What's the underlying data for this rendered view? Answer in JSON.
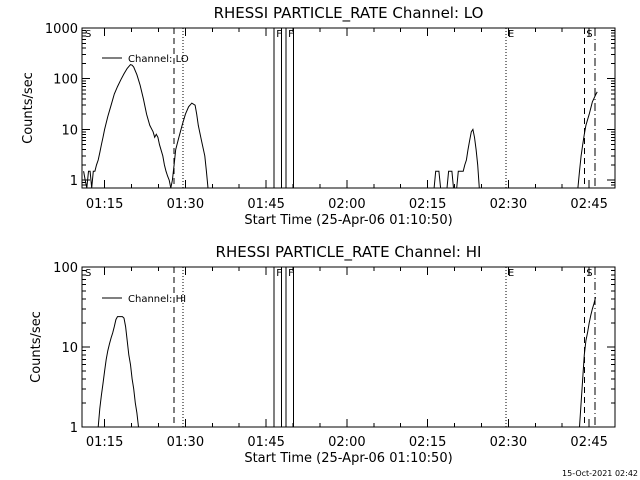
{
  "footer": {
    "timestamp": "15-Oct-2021 02:42"
  },
  "chart_data": [
    {
      "type": "line",
      "title": "RHESSI PARTICLE_RATE Channel: LO",
      "xlabel": "Start Time (25-Apr-06 01:10:50)",
      "ylabel": "Counts/sec",
      "yscale": "log",
      "xlim": [
        1.18,
        2.83
      ],
      "ylim": [
        0.7,
        1000
      ],
      "xticks": [
        1.25,
        1.5,
        1.75,
        2.0,
        2.25,
        2.5,
        2.75
      ],
      "xtick_labels": [
        "01:15",
        "01:30",
        "01:45",
        "02:00",
        "02:15",
        "02:30",
        "02:45"
      ],
      "yticks": [
        1,
        10,
        100,
        1000
      ],
      "ytick_labels": [
        "1",
        "10",
        "100",
        "1000"
      ],
      "legend": {
        "placement": "top-left",
        "entries": [
          "Channel: LO"
        ]
      },
      "markers": [
        {
          "label": "S",
          "x": 1.183,
          "style": "none"
        },
        {
          "label": "",
          "x": 1.465,
          "style": "dashed"
        },
        {
          "label": "",
          "x": 1.493,
          "style": "dotted"
        },
        {
          "label": "F",
          "x": 1.775,
          "style": "solid"
        },
        {
          "label": "",
          "x": 1.798,
          "style": "solid"
        },
        {
          "label": "F",
          "x": 1.812,
          "style": "solid"
        },
        {
          "label": "",
          "x": 1.835,
          "style": "solid"
        },
        {
          "label": "E",
          "x": 2.492,
          "style": "dotted"
        },
        {
          "label": "S",
          "x": 2.735,
          "style": "dashed"
        },
        {
          "label": "",
          "x": 2.768,
          "style": "dashdot"
        }
      ],
      "series": [
        {
          "segments": [
            [
              [
                1.185,
                1.5
              ],
              [
                1.19,
                1
              ],
              [
                1.195,
                0.7
              ],
              [
                1.2,
                1.5
              ],
              [
                1.205,
                1.5
              ],
              [
                1.21,
                0.7
              ],
              [
                1.215,
                1.5
              ],
              [
                1.22,
                1.5
              ],
              [
                1.225,
                2
              ],
              [
                1.23,
                2.5
              ],
              [
                1.235,
                3.5
              ],
              [
                1.24,
                5
              ],
              [
                1.245,
                7
              ],
              [
                1.25,
                10
              ],
              [
                1.26,
                18
              ],
              [
                1.27,
                30
              ],
              [
                1.28,
                50
              ],
              [
                1.29,
                70
              ],
              [
                1.3,
                95
              ],
              [
                1.31,
                125
              ],
              [
                1.32,
                160
              ],
              [
                1.33,
                190
              ],
              [
                1.335,
                185
              ],
              [
                1.34,
                170
              ],
              [
                1.35,
                120
              ],
              [
                1.36,
                75
              ],
              [
                1.37,
                40
              ],
              [
                1.38,
                20
              ],
              [
                1.39,
                12
              ],
              [
                1.4,
                9
              ],
              [
                1.405,
                7
              ],
              [
                1.41,
                8
              ],
              [
                1.415,
                7
              ],
              [
                1.42,
                5
              ],
              [
                1.43,
                3
              ],
              [
                1.435,
                2
              ],
              [
                1.44,
                1.5
              ],
              [
                1.445,
                1.2
              ],
              [
                1.45,
                1
              ],
              [
                1.455,
                0.7
              ]
            ],
            [
              [
                1.455,
                0.7
              ],
              [
                1.46,
                1
              ],
              [
                1.465,
                2
              ],
              [
                1.47,
                4
              ],
              [
                1.48,
                7
              ],
              [
                1.49,
                12
              ],
              [
                1.5,
                20
              ],
              [
                1.51,
                28
              ],
              [
                1.52,
                33
              ],
              [
                1.53,
                30
              ],
              [
                1.535,
                20
              ],
              [
                1.54,
                12
              ],
              [
                1.55,
                6
              ],
              [
                1.56,
                3
              ],
              [
                1.565,
                1.5
              ],
              [
                1.57,
                0.7
              ]
            ],
            [
              [
                2.27,
                0.7
              ],
              [
                2.275,
                1.5
              ],
              [
                2.285,
                1.5
              ],
              [
                2.29,
                0.7
              ],
              [
                2.31,
                0.7
              ],
              [
                2.315,
                1.5
              ],
              [
                2.325,
                1.5
              ],
              [
                2.33,
                0.7
              ],
              [
                2.34,
                0.7
              ],
              [
                2.345,
                1.5
              ],
              [
                2.36,
                1.5
              ],
              [
                2.365,
                2
              ],
              [
                2.37,
                2.5
              ],
              [
                2.375,
                4
              ],
              [
                2.38,
                6
              ],
              [
                2.385,
                9
              ],
              [
                2.39,
                10
              ],
              [
                2.395,
                7
              ],
              [
                2.4,
                4
              ],
              [
                2.405,
                2
              ],
              [
                2.41,
                0.7
              ]
            ],
            [
              [
                2.715,
                0.7
              ],
              [
                2.72,
                1.5
              ],
              [
                2.725,
                3
              ],
              [
                2.73,
                5
              ],
              [
                2.735,
                8
              ],
              [
                2.74,
                12
              ],
              [
                2.75,
                20
              ],
              [
                2.76,
                35
              ],
              [
                2.77,
                48
              ],
              [
                2.775,
                55
              ]
            ]
          ]
        }
      ]
    },
    {
      "type": "line",
      "title": "RHESSI PARTICLE_RATE Channel: HI",
      "xlabel": "Start Time (25-Apr-06 01:10:50)",
      "ylabel": "Counts/sec",
      "yscale": "log",
      "xlim": [
        1.18,
        2.83
      ],
      "ylim": [
        1,
        100
      ],
      "xticks": [
        1.25,
        1.5,
        1.75,
        2.0,
        2.25,
        2.5,
        2.75
      ],
      "xtick_labels": [
        "01:15",
        "01:30",
        "01:45",
        "02:00",
        "02:15",
        "02:30",
        "02:45"
      ],
      "yticks": [
        1,
        10,
        100
      ],
      "ytick_labels": [
        "1",
        "10",
        "100"
      ],
      "legend": {
        "placement": "top-left",
        "entries": [
          "Channel: HI"
        ]
      },
      "markers": [
        {
          "label": "S",
          "x": 1.183,
          "style": "none"
        },
        {
          "label": "",
          "x": 1.465,
          "style": "dashed"
        },
        {
          "label": "",
          "x": 1.493,
          "style": "dotted"
        },
        {
          "label": "F",
          "x": 1.775,
          "style": "solid"
        },
        {
          "label": "",
          "x": 1.798,
          "style": "solid"
        },
        {
          "label": "F",
          "x": 1.812,
          "style": "solid"
        },
        {
          "label": "",
          "x": 1.835,
          "style": "solid"
        },
        {
          "label": "E",
          "x": 2.492,
          "style": "dotted"
        },
        {
          "label": "S",
          "x": 2.735,
          "style": "dashed"
        },
        {
          "label": "",
          "x": 2.768,
          "style": "dashdot"
        }
      ],
      "series": [
        {
          "segments": [
            [
              [
                1.23,
                1
              ],
              [
                1.235,
                1.7
              ],
              [
                1.24,
                2.5
              ],
              [
                1.245,
                3.5
              ],
              [
                1.25,
                5
              ],
              [
                1.255,
                7
              ],
              [
                1.26,
                9
              ],
              [
                1.265,
                11
              ],
              [
                1.27,
                13
              ],
              [
                1.275,
                15
              ],
              [
                1.28,
                18
              ],
              [
                1.285,
                22
              ],
              [
                1.29,
                24
              ],
              [
                1.295,
                24
              ],
              [
                1.3,
                24
              ],
              [
                1.305,
                24
              ],
              [
                1.31,
                23
              ],
              [
                1.315,
                18
              ],
              [
                1.32,
                12
              ],
              [
                1.325,
                8
              ],
              [
                1.33,
                6
              ],
              [
                1.335,
                4
              ],
              [
                1.34,
                3
              ],
              [
                1.345,
                2
              ],
              [
                1.35,
                1.5
              ],
              [
                1.355,
                1
              ]
            ],
            [
              [
                2.72,
                1
              ],
              [
                2.725,
                2
              ],
              [
                2.73,
                4
              ],
              [
                2.735,
                8
              ],
              [
                2.74,
                12
              ],
              [
                2.745,
                15
              ],
              [
                2.75,
                20
              ],
              [
                2.755,
                25
              ],
              [
                2.76,
                30
              ],
              [
                2.765,
                35
              ],
              [
                2.77,
                42
              ]
            ]
          ]
        }
      ]
    }
  ]
}
